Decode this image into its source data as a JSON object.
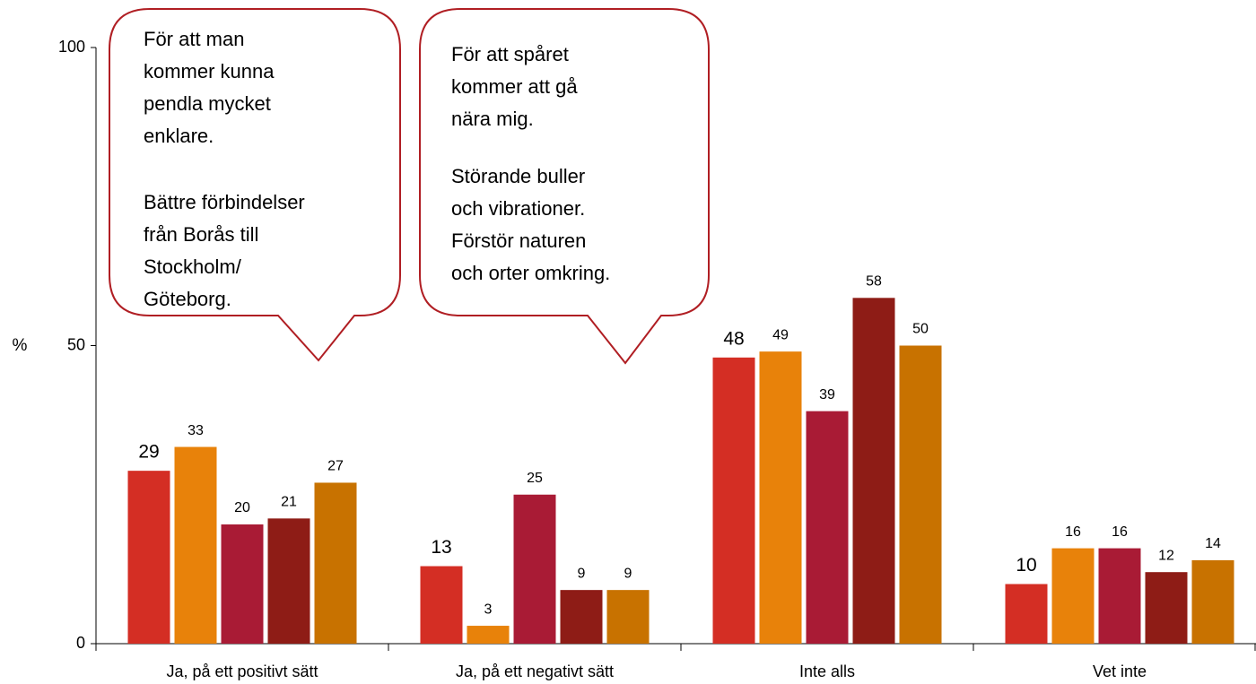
{
  "chart_data": {
    "type": "bar",
    "categories": [
      "Ja, på ett positivt sätt",
      "Ja, på ett negativt sätt",
      "Inte alls",
      "Vet inte"
    ],
    "series": [
      {
        "color": "#d42e24",
        "values": [
          29,
          13,
          48,
          10
        ]
      },
      {
        "color": "#e8820a",
        "values": [
          33,
          3,
          49,
          16
        ]
      },
      {
        "color": "#a91b35",
        "values": [
          20,
          25,
          39,
          16
        ]
      },
      {
        "color": "#8e1c16",
        "values": [
          21,
          9,
          58,
          12
        ]
      },
      {
        "color": "#c87200",
        "values": [
          27,
          9,
          50,
          14
        ]
      }
    ],
    "ylabel": "%",
    "ylim": [
      0,
      100
    ],
    "yticks": [
      0,
      50,
      100
    ],
    "annotations": [
      {
        "paragraphs": [
          [
            "För att man",
            "kommer kunna",
            "pendla mycket",
            "enklare."
          ],
          [
            "Bättre förbindelser",
            "från Borås till",
            "Stockholm/",
            "Göteborg."
          ]
        ]
      },
      {
        "paragraphs": [
          [
            "För att spåret",
            "kommer att gå",
            "nära mig."
          ],
          [
            "Störande buller",
            "och vibrationer.",
            "Förstör naturen",
            "och orter omkring."
          ]
        ]
      }
    ]
  }
}
